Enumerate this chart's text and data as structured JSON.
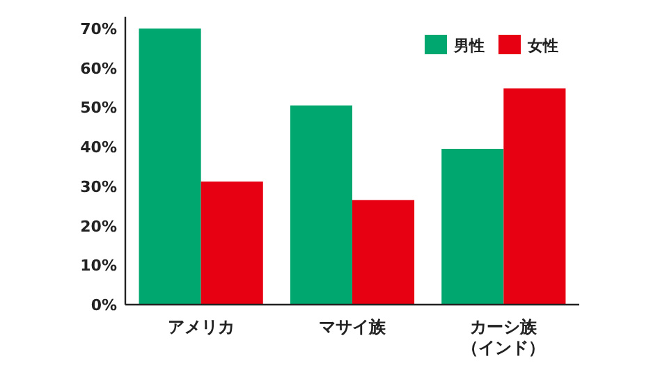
{
  "chart_data": {
    "type": "bar",
    "categories": [
      "アメリカ",
      "マサイ族",
      "カーシ族（インド）"
    ],
    "series": [
      {
        "name": "男性",
        "color": "#00a870",
        "values": [
          70,
          50.5,
          39.5
        ]
      },
      {
        "name": "女性",
        "color": "#e60012",
        "values": [
          31.2,
          26.5,
          54.8
        ]
      }
    ],
    "ylim": [
      0,
      73
    ],
    "yticks": [
      {
        "value": 0,
        "label": "0%"
      },
      {
        "value": 10,
        "label": "10%"
      },
      {
        "value": 20,
        "label": "20%"
      },
      {
        "value": 30,
        "label": "30%"
      },
      {
        "value": 40,
        "label": "40%"
      },
      {
        "value": 50,
        "label": "50%"
      },
      {
        "value": 60,
        "label": "60%"
      },
      {
        "value": 70,
        "label": "70%"
      }
    ],
    "legend": "top right",
    "grid": false
  }
}
